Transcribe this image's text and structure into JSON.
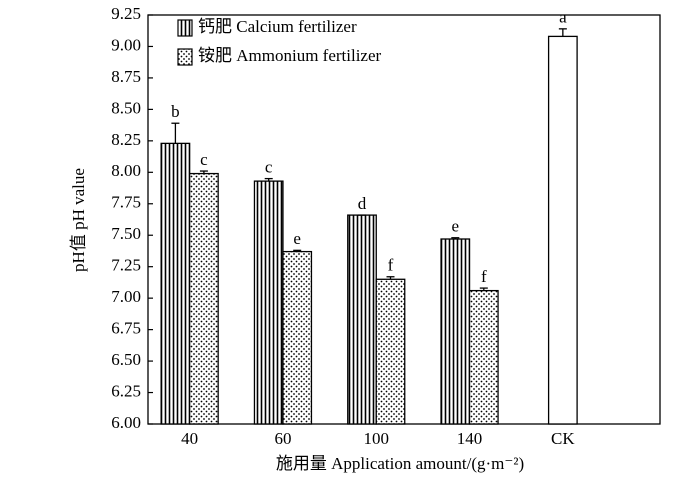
{
  "chart_data": {
    "type": "bar",
    "x_label": "施用量 Application amount/(g·m⁻²)",
    "y_label": "pH值 pH value",
    "categories": [
      "40",
      "60",
      "100",
      "140",
      "CK"
    ],
    "series": [
      {
        "name": "钙肥 Calcium fertilizer",
        "color": "#000000",
        "pattern": "vertical-lines",
        "values": [
          8.23,
          7.93,
          7.66,
          7.47,
          null
        ],
        "errors": [
          0.16,
          0.02,
          0,
          0.01,
          null
        ],
        "letters": [
          "b",
          "c",
          "d",
          "e",
          null
        ]
      },
      {
        "name": "铵肥 Ammonium fertilizer",
        "color": "#000000",
        "pattern": "dots",
        "values": [
          7.99,
          7.37,
          7.15,
          7.06,
          null
        ],
        "errors": [
          0.02,
          0.01,
          0.02,
          0.02,
          null
        ],
        "letters": [
          "c",
          "e",
          "f",
          "f",
          null
        ]
      },
      {
        "color": "#ffffff",
        "values": [
          null,
          null,
          null,
          null,
          9.08
        ],
        "errors": [
          null,
          null,
          null,
          null,
          0.06
        ],
        "letters": [
          null,
          null,
          null,
          null,
          "a"
        ]
      }
    ],
    "ylim": [
      6,
      9.25
    ],
    "yticks": [
      {
        "value": 6,
        "label": "6.00"
      },
      {
        "value": 6.25,
        "label": "6.25"
      },
      {
        "value": 6.5,
        "label": "6.50"
      },
      {
        "value": 6.75,
        "label": "6.75"
      },
      {
        "value": 7,
        "label": "7.00"
      },
      {
        "value": 7.25,
        "label": "7.25"
      },
      {
        "value": 7.5,
        "label": "7.50"
      },
      {
        "value": 7.75,
        "label": "7.75"
      },
      {
        "value": 8,
        "label": "8.00"
      },
      {
        "value": 8.25,
        "label": "8.25"
      },
      {
        "value": 8.5,
        "label": "8.50"
      },
      {
        "value": 8.75,
        "label": "8.75"
      },
      {
        "value": 9,
        "label": "9.00"
      },
      {
        "value": 9.25,
        "label": "9.25"
      }
    ],
    "legend": "upper-left"
  }
}
